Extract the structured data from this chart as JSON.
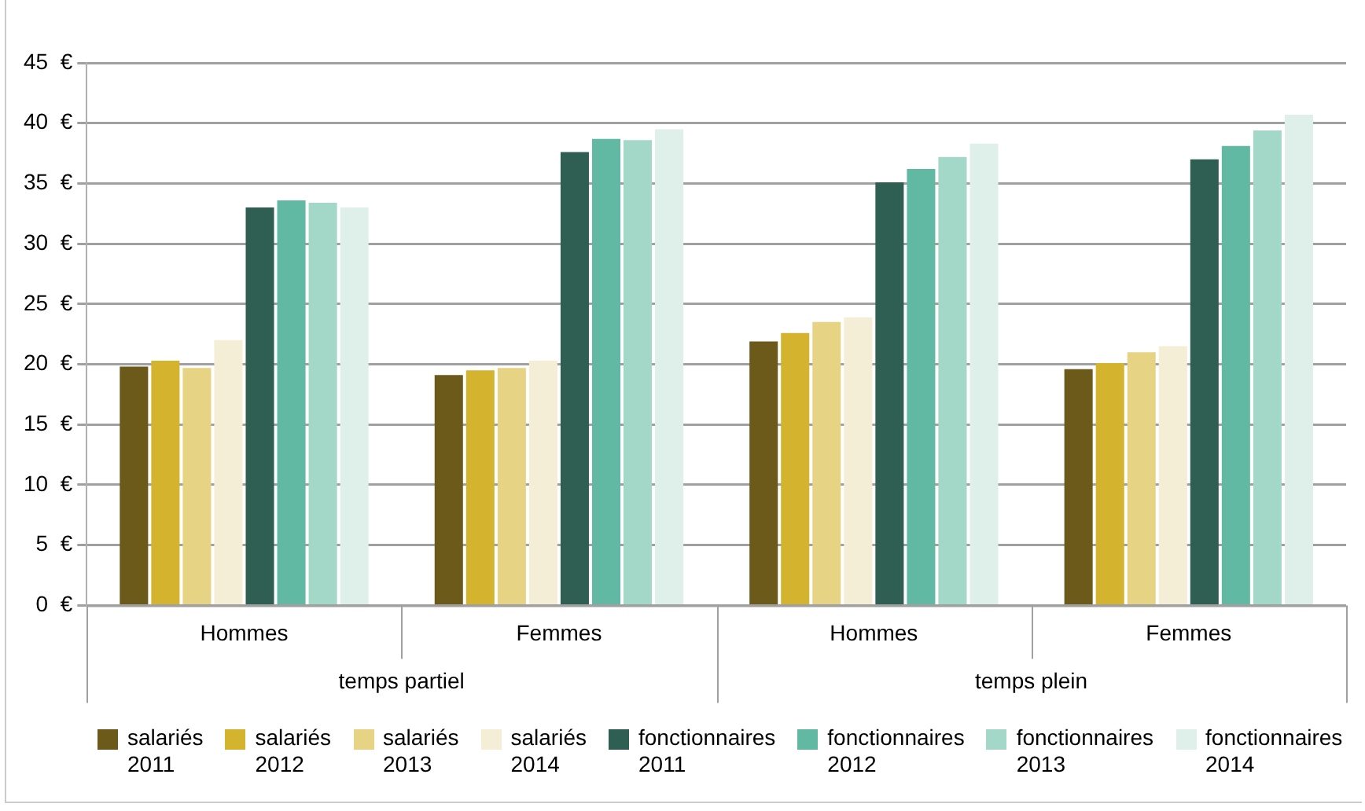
{
  "chart_data": {
    "type": "bar",
    "categories": [
      "Hommes",
      "Femmes",
      "Hommes",
      "Femmes"
    ],
    "series": [
      {
        "name": "salariés 2011",
        "color": "#6b5a1a",
        "values": [
          19.8,
          19.1,
          21.9,
          19.6
        ]
      },
      {
        "name": "salariés 2012",
        "color": "#d4b32e",
        "values": [
          20.3,
          19.5,
          22.6,
          20.1
        ]
      },
      {
        "name": "salariés 2013",
        "color": "#e6d384",
        "values": [
          19.7,
          19.7,
          23.5,
          21.0
        ]
      },
      {
        "name": "salariés 2014",
        "color": "#f5eed6",
        "values": [
          22.0,
          20.3,
          23.9,
          21.5
        ]
      },
      {
        "name": "fonctionnaires 2011",
        "color": "#2f5e52",
        "values": [
          33.0,
          37.6,
          35.1,
          37.0
        ]
      },
      {
        "name": "fonctionnaires 2012",
        "color": "#61b9a3",
        "values": [
          33.6,
          38.7,
          36.2,
          38.1
        ]
      },
      {
        "name": "fonctionnaires 2013",
        "color": "#a3d8c8",
        "values": [
          33.4,
          38.6,
          37.2,
          39.4
        ]
      },
      {
        "name": "fonctionnaires 2014",
        "color": "#dff0eb",
        "values": [
          33.0,
          39.5,
          38.3,
          40.7
        ]
      }
    ],
    "annotations": [
      "temps partiel",
      "temps plein"
    ],
    "ylim": [
      0,
      45
    ],
    "yticks": [
      {
        "value": 0,
        "label": "0  €"
      },
      {
        "value": 5,
        "label": "5  €"
      },
      {
        "value": 10,
        "label": "10  €"
      },
      {
        "value": 15,
        "label": "15  €"
      },
      {
        "value": 20,
        "label": "20  €"
      },
      {
        "value": 25,
        "label": "25  €"
      },
      {
        "value": 30,
        "label": "30  €"
      },
      {
        "value": 35,
        "label": "35  €"
      },
      {
        "value": 40,
        "label": "40  €"
      },
      {
        "value": 45,
        "label": "45  €"
      }
    ],
    "grid": "y",
    "legend": "bottom"
  }
}
